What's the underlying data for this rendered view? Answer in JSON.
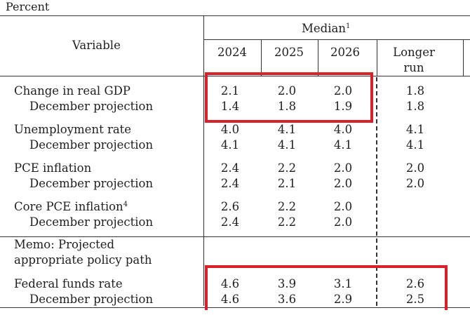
{
  "unit_label": "Percent",
  "header": {
    "variable": "Variable",
    "median": "Median",
    "median_footnote": "1",
    "years": [
      "2024",
      "2025",
      "2026"
    ],
    "longer_run_line1": "Longer",
    "longer_run_line2": "run"
  },
  "rows": [
    {
      "label": "Change in real GDP",
      "footnote": "",
      "values": [
        "2.1",
        "2.0",
        "2.0",
        "1.8"
      ]
    },
    {
      "label": "December projection",
      "footnote": "",
      "values": [
        "1.4",
        "1.8",
        "1.9",
        "1.8"
      ]
    },
    {
      "label": "Unemployment rate",
      "footnote": "",
      "values": [
        "4.0",
        "4.1",
        "4.0",
        "4.1"
      ]
    },
    {
      "label": "December projection",
      "footnote": "",
      "values": [
        "4.1",
        "4.1",
        "4.1",
        "4.1"
      ]
    },
    {
      "label": "PCE inflation",
      "footnote": "",
      "values": [
        "2.4",
        "2.2",
        "2.0",
        "2.0"
      ]
    },
    {
      "label": "December projection",
      "footnote": "",
      "values": [
        "2.4",
        "2.1",
        "2.0",
        "2.0"
      ]
    },
    {
      "label": "Core PCE inflation",
      "footnote": "4",
      "values": [
        "2.6",
        "2.2",
        "2.0",
        ""
      ]
    },
    {
      "label": "December projection",
      "footnote": "",
      "values": [
        "2.4",
        "2.2",
        "2.0",
        ""
      ]
    }
  ],
  "memo": {
    "line1": "Memo: Projected",
    "line2": "appropriate policy path"
  },
  "policy_rows": [
    {
      "label": "Federal funds rate",
      "values": [
        "4.6",
        "3.9",
        "3.1",
        "2.6"
      ]
    },
    {
      "label": "December projection",
      "values": [
        "4.6",
        "3.6",
        "2.9",
        "2.5"
      ]
    }
  ],
  "highlight_color": "#d8222a"
}
